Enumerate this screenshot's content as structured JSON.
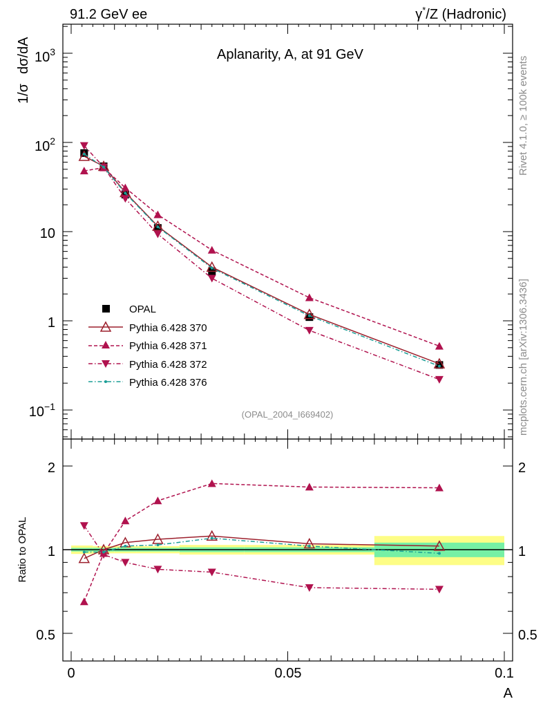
{
  "header": {
    "left": "91.2 GeV ee",
    "right_prefix": "γ",
    "right_sup": "*",
    "right_suffix": "/Z (Hadronic)"
  },
  "side_labels": {
    "rivet": "Rivet 4.1.0, ≥ 100k events",
    "mcplots": "mcplots.cern.ch [arXiv:1306.3436]"
  },
  "colors": {
    "opal": "#000000",
    "p370": "#9c1f2c",
    "p371": "#b0124e",
    "p372": "#b0124e",
    "p376": "#1a9e96",
    "band_outer": "#fdfd86",
    "band_inner": "#76f0a5"
  },
  "chart_data": [
    {
      "type": "line",
      "panel": "main",
      "title": "Aplanarity, A, at 91 GeV",
      "ylabel_prefix": "1/σ",
      "ylabel_main": "dσ/dA",
      "xlabel": "A",
      "reference": "(OPAL_2004_I669402)",
      "yscale": "log",
      "xlim": [
        0,
        0.1
      ],
      "ylim": [
        0.05,
        2000
      ],
      "ytick_labels": {
        "t1000": [
          "10",
          "3"
        ],
        "t100": [
          "10",
          "2"
        ],
        "t10": "10",
        "t1": "1",
        "t01": [
          "10",
          "−1"
        ]
      },
      "legend_position": "center-left",
      "x": [
        0.003,
        0.0075,
        0.0125,
        0.02,
        0.0325,
        0.055,
        0.085
      ],
      "series": [
        {
          "key": "opal",
          "name": "OPAL",
          "values": [
            76,
            54,
            26,
            11,
            3.6,
            1.1,
            0.32
          ]
        },
        {
          "key": "p370",
          "name": "Pythia 6.428 370",
          "values": [
            70,
            54,
            27.5,
            11.5,
            4.0,
            1.18,
            0.33
          ]
        },
        {
          "key": "p371",
          "name": "Pythia 6.428 371",
          "values": [
            48,
            52,
            31,
            15.5,
            6.2,
            1.82,
            0.52
          ]
        },
        {
          "key": "p372",
          "name": "Pythia 6.428 372",
          "values": [
            92,
            53,
            23.5,
            9.4,
            3.0,
            0.78,
            0.22
          ]
        },
        {
          "key": "p376",
          "name": "Pythia 6.428 376",
          "values": [
            74,
            53,
            27,
            11.3,
            3.9,
            1.14,
            0.31
          ]
        }
      ]
    },
    {
      "type": "line",
      "panel": "ratio",
      "ylabel": "Ratio to OPAL",
      "xlabel": "A",
      "yscale": "log",
      "xlim": [
        0,
        0.1
      ],
      "ylim": [
        0.41,
        2.45
      ],
      "ytick_labels": [
        "0.5",
        "1",
        "2"
      ],
      "xtick_labels": [
        "0",
        "0.05",
        "0.1"
      ],
      "x": [
        0.003,
        0.0075,
        0.0125,
        0.02,
        0.0325,
        0.055,
        0.085
      ],
      "band": {
        "edges": [
          0,
          0.005,
          0.01,
          0.015,
          0.025,
          0.04,
          0.07,
          0.1
        ],
        "outer": [
          0.035,
          0.03,
          0.03,
          0.03,
          0.04,
          0.04,
          0.12
        ],
        "inner": [
          0.015,
          0.015,
          0.015,
          0.015,
          0.02,
          0.02,
          0.06
        ]
      },
      "series": [
        {
          "key": "p370",
          "name": "Pythia 6.428 370",
          "values": [
            0.93,
            1.0,
            1.06,
            1.09,
            1.12,
            1.05,
            1.03
          ]
        },
        {
          "key": "p371",
          "name": "Pythia 6.428 371",
          "values": [
            0.65,
            0.97,
            1.27,
            1.5,
            1.73,
            1.68,
            1.67
          ]
        },
        {
          "key": "p372",
          "name": "Pythia 6.428 372",
          "values": [
            1.22,
            0.96,
            0.9,
            0.85,
            0.83,
            0.73,
            0.72
          ]
        },
        {
          "key": "p376",
          "name": "Pythia 6.428 376",
          "values": [
            0.98,
            0.98,
            1.03,
            1.04,
            1.1,
            1.03,
            0.97
          ]
        }
      ]
    }
  ]
}
